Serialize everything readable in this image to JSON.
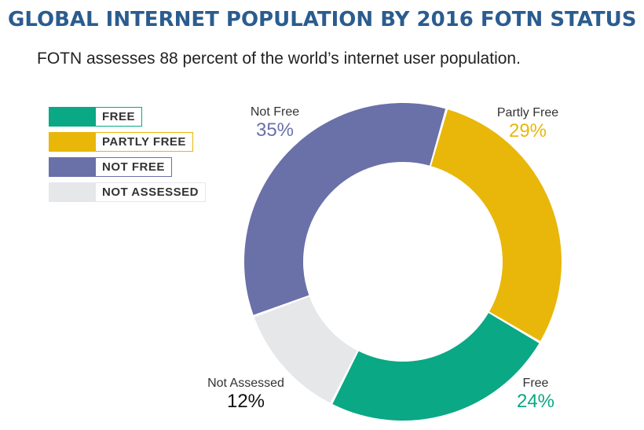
{
  "header": {
    "title": "GLOBAL INTERNET POPULATION BY 2016 FOTN STATUS",
    "subtitle": "FOTN assesses 88 percent of the world’s internet user population."
  },
  "legend": [
    {
      "label": "FREE",
      "color": "#0aa884"
    },
    {
      "label": "PARTLY FREE",
      "color": "#e8b70a"
    },
    {
      "label": "NOT FREE",
      "color": "#6a70a8"
    },
    {
      "label": "NOT ASSESSED",
      "color": "#e6e7e9"
    }
  ],
  "chart_data": {
    "type": "pie",
    "variant": "donut",
    "title": "GLOBAL INTERNET POPULATION BY 2016 FOTN STATUS",
    "subtitle": "FOTN assesses 88 percent of the world’s internet user population.",
    "legend_position": "top-left",
    "slices": [
      {
        "name": "Partly Free",
        "value": 29,
        "value_label": "29%",
        "color": "#e8b70a",
        "label_color": "#e8b70a"
      },
      {
        "name": "Free",
        "value": 24,
        "value_label": "24%",
        "color": "#0aa884",
        "label_color": "#0aa884"
      },
      {
        "name": "Not Assessed",
        "value": 12,
        "value_label": "12%",
        "color": "#e6e7e9",
        "label_color": "#111111"
      },
      {
        "name": "Not Free",
        "value": 35,
        "value_label": "35%",
        "color": "#6a70a8",
        "label_color": "#6a70a8"
      }
    ]
  }
}
